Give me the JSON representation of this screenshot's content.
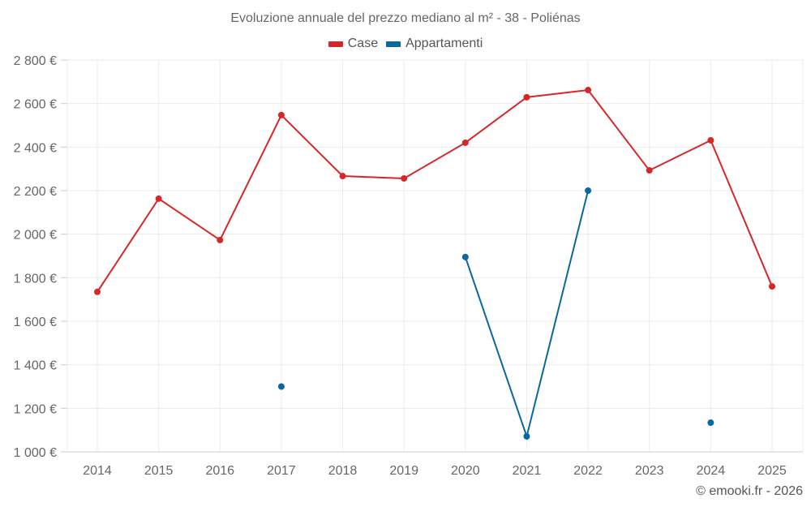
{
  "chart_data": {
    "type": "line",
    "title": "Evoluzione annuale del prezzo mediano al m² - 38 - Poliénas",
    "xlabel": "",
    "ylabel": "",
    "ylim": [
      1000,
      2800
    ],
    "y_ticks": [
      1000,
      1200,
      1400,
      1600,
      1800,
      2000,
      2200,
      2400,
      2600,
      2800
    ],
    "y_tick_labels": [
      "1 000 €",
      "1 200 €",
      "1 400 €",
      "1 600 €",
      "1 800 €",
      "2 000 €",
      "2 200 €",
      "2 400 €",
      "2 600 €",
      "2 800 €"
    ],
    "categories": [
      "2014",
      "2015",
      "2016",
      "2017",
      "2018",
      "2019",
      "2020",
      "2021",
      "2022",
      "2023",
      "2024",
      "2025"
    ],
    "grid": true,
    "legend_position": "top",
    "series": [
      {
        "name": "Case",
        "color": "#d62728",
        "values": [
          1735,
          2163,
          1973,
          2547,
          2267,
          2256,
          2420,
          2629,
          2662,
          2293,
          2431,
          1760
        ]
      },
      {
        "name": "Appartamenti",
        "color": "#0868a0",
        "values": [
          null,
          null,
          null,
          1300,
          null,
          null,
          1895,
          1071,
          2200,
          null,
          1134,
          null
        ]
      }
    ]
  },
  "legend": {
    "items": [
      {
        "label": "Case",
        "color": "#d62728"
      },
      {
        "label": "Appartamenti",
        "color": "#0868a0"
      }
    ]
  },
  "credit": "© emooki.fr - 2026"
}
